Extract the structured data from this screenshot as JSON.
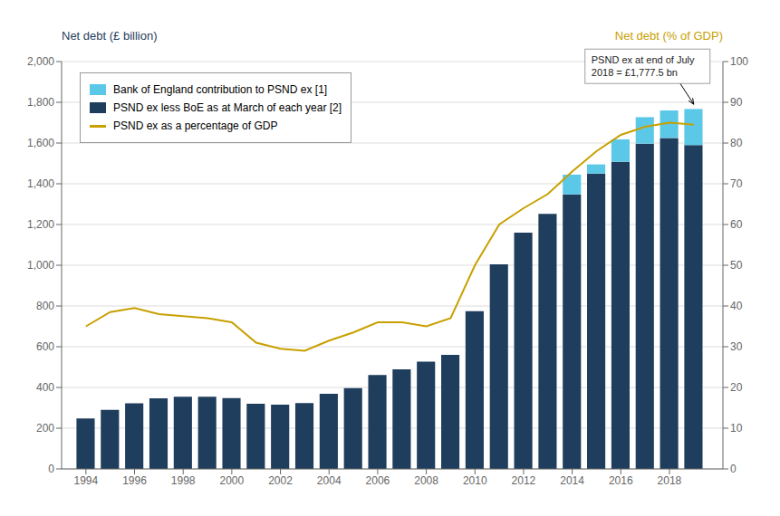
{
  "chart_data": {
    "type": "bar",
    "stacked": true,
    "x": [
      1994,
      1995,
      1996,
      1997,
      1998,
      1999,
      2000,
      2001,
      2002,
      2003,
      2004,
      2005,
      2006,
      2007,
      2008,
      2009,
      2010,
      2011,
      2012,
      2013,
      2014,
      2015,
      2016,
      2017,
      2018,
      2019
    ],
    "xlim": [
      1993.0,
      2020.2
    ],
    "xticks": [
      1994,
      1996,
      1998,
      2000,
      2002,
      2004,
      2006,
      2008,
      2010,
      2012,
      2014,
      2016,
      2018
    ],
    "ylim": [
      0,
      2000
    ],
    "yticks": [
      0,
      200,
      400,
      600,
      800,
      {
        "value": 1000,
        "label": "1,000"
      },
      {
        "value": 1200,
        "label": "1,200"
      },
      {
        "value": 1400,
        "label": "1,400"
      },
      {
        "value": 1600,
        "label": "1,600"
      },
      {
        "value": 1800,
        "label": "1,800"
      },
      {
        "value": 2000,
        "label": "2,000"
      }
    ],
    "y2lim": [
      0,
      100
    ],
    "y2ticks": [
      0,
      10,
      20,
      30,
      40,
      50,
      60,
      70,
      80,
      90,
      100
    ],
    "y_label": "Net debt (£ billion)",
    "y2_label": "Net debt (% of GDP)",
    "grid": true,
    "legend": "upper left",
    "series": [
      {
        "name": "PSND ex less BoE as at March of each year [2]",
        "color": "#1f3d5c",
        "values": [
          248,
          290,
          322,
          347,
          355,
          355,
          348,
          320,
          316,
          323,
          369,
          397,
          461,
          489,
          527,
          560,
          775,
          1005,
          1160,
          1252,
          1348,
          1450,
          1508,
          1597,
          1625,
          1590
        ]
      },
      {
        "name": "Bank of England contribution to PSND ex [1]",
        "color": "#5bc8e8",
        "values": [
          0,
          0,
          0,
          0,
          0,
          0,
          0,
          0,
          0,
          0,
          0,
          0,
          0,
          0,
          0,
          0,
          0,
          0,
          0,
          0,
          97,
          45,
          110,
          130,
          135,
          177
        ]
      },
      {
        "name": "PSND ex as a percentage of GDP",
        "type": "line",
        "axis": "y2",
        "color": "#c8a000",
        "values": [
          35,
          38.5,
          39.5,
          38,
          37.5,
          37,
          36,
          31,
          29.5,
          29,
          31.5,
          33.5,
          36,
          36,
          35,
          37,
          50,
          60,
          64,
          67.5,
          73,
          78,
          82,
          84,
          85,
          84.5
        ]
      }
    ],
    "annotations": [
      {
        "text": "PSND ex at end of July\n2018 = £1,777.5 bn",
        "x": 2019,
        "y": 1777
      }
    ]
  }
}
